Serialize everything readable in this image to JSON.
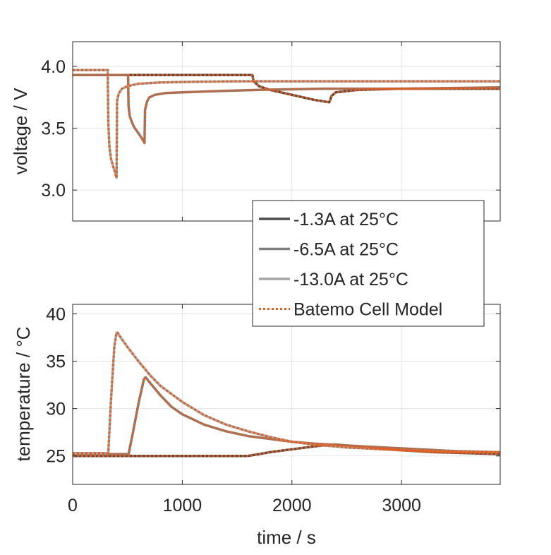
{
  "chart_data": [
    {
      "type": "line",
      "ylabel": "voltage / V",
      "xlabel": "",
      "xlim": [
        0,
        3900
      ],
      "ylim": [
        2.75,
        4.2
      ],
      "yticks": [
        "3.0",
        "3.5",
        "4.0"
      ],
      "ytick_values": [
        3.0,
        3.5,
        4.0
      ],
      "grid": true,
      "series": [
        {
          "name": "-1.3A at 25°C",
          "color": "#4d4d4d",
          "x": [
            0,
            1640,
            1650,
            1700,
            1800,
            2000,
            2200,
            2340,
            2350,
            2360,
            2400,
            2600,
            3000,
            3500,
            3900
          ],
          "y": [
            3.93,
            3.93,
            3.88,
            3.84,
            3.81,
            3.77,
            3.73,
            3.71,
            3.73,
            3.76,
            3.79,
            3.81,
            3.82,
            3.82,
            3.82
          ]
        },
        {
          "name": "-6.5A at 25°C",
          "color": "#7f7f7f",
          "x": [
            0,
            505,
            510,
            520,
            540,
            560,
            600,
            630,
            650,
            655,
            660,
            680,
            700,
            750,
            850,
            1000,
            1300,
            1700,
            2300,
            3000,
            3900
          ],
          "y": [
            3.93,
            3.93,
            3.68,
            3.6,
            3.55,
            3.51,
            3.46,
            3.42,
            3.39,
            3.38,
            3.65,
            3.72,
            3.75,
            3.77,
            3.785,
            3.79,
            3.8,
            3.81,
            3.82,
            3.82,
            3.83
          ]
        },
        {
          "name": "-13.0A at 25°C",
          "color": "#a6a6a6",
          "x": [
            0,
            320,
            325,
            335,
            350,
            370,
            385,
            395,
            400,
            405,
            420,
            450,
            500,
            600,
            800,
            1100,
            1500,
            2000,
            3000,
            3900
          ],
          "y": [
            3.97,
            3.97,
            3.55,
            3.35,
            3.25,
            3.19,
            3.15,
            3.11,
            3.1,
            3.72,
            3.78,
            3.82,
            3.84,
            3.86,
            3.87,
            3.875,
            3.88,
            3.88,
            3.88,
            3.88
          ]
        },
        {
          "name": "Batemo Cell Model",
          "color": "#e65c1a",
          "dashed": true
        }
      ]
    },
    {
      "type": "line",
      "ylabel": "temperature / °C",
      "xlabel": "time / s",
      "xlim": [
        0,
        3900
      ],
      "ylim": [
        22,
        41
      ],
      "xticks": [
        "0",
        "1000",
        "2000",
        "3000"
      ],
      "xtick_values": [
        0,
        1000,
        2000,
        3000
      ],
      "yticks": [
        "25",
        "30",
        "35",
        "40"
      ],
      "ytick_values": [
        25,
        30,
        35,
        40
      ],
      "grid": true,
      "series": [
        {
          "name": "-1.3A at 25°C",
          "color": "#4d4d4d",
          "x": [
            0,
            1600,
            1700,
            1800,
            2000,
            2200,
            2350,
            2400,
            2600,
            2800,
            3000,
            3300,
            3600,
            3900
          ],
          "y": [
            25.0,
            25.0,
            25.2,
            25.4,
            25.7,
            26.0,
            26.2,
            26.2,
            26.0,
            25.8,
            25.6,
            25.4,
            25.3,
            25.2
          ]
        },
        {
          "name": "-6.5A at 25°C",
          "color": "#7f7f7f",
          "x": [
            0,
            510,
            550,
            600,
            650,
            665,
            700,
            800,
            900,
            1000,
            1200,
            1400,
            1600,
            1800,
            2000,
            2200,
            2500,
            3000,
            3500,
            3900
          ],
          "y": [
            25.2,
            25.2,
            27.5,
            30.5,
            33.1,
            33.3,
            32.8,
            31.4,
            30.2,
            29.4,
            28.3,
            27.6,
            27.1,
            26.8,
            26.5,
            26.3,
            26.1,
            25.8,
            25.5,
            25.4
          ]
        },
        {
          "name": "-13.0A at 25°C",
          "color": "#a6a6a6",
          "x": [
            0,
            325,
            350,
            380,
            400,
            410,
            450,
            500,
            600,
            700,
            800,
            1000,
            1200,
            1400,
            1600,
            1800,
            2000,
            2200,
            2500,
            3000,
            3500,
            3900
          ],
          "y": [
            25.3,
            25.3,
            31.0,
            36.5,
            38.0,
            38.0,
            37.3,
            36.5,
            35.0,
            33.6,
            32.4,
            30.7,
            29.3,
            28.3,
            27.6,
            27.0,
            26.5,
            26.2,
            25.9,
            25.6,
            25.4,
            25.4
          ]
        },
        {
          "name": "Batemo Cell Model",
          "color": "#e65c1a",
          "dashed": true
        }
      ]
    }
  ],
  "legend": {
    "placement": "middle-right",
    "entries": [
      "-1.3A at 25°C",
      "-6.5A at 25°C",
      "-13.0A at 25°C",
      "Batemo Cell Model"
    ]
  }
}
